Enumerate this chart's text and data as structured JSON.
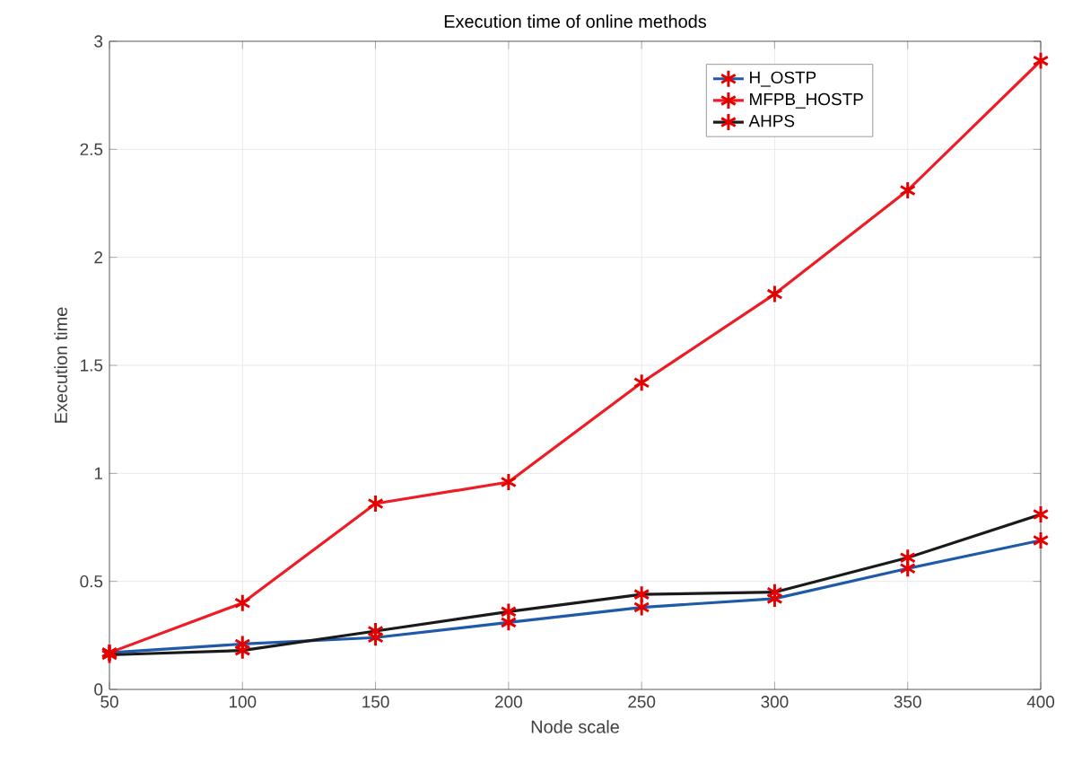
{
  "chart_data": {
    "type": "line",
    "title": "Execution time of online methods",
    "xlabel": "Node scale",
    "ylabel": "Execution time",
    "x": [
      50,
      100,
      150,
      200,
      250,
      300,
      350,
      400
    ],
    "series": [
      {
        "name": "H_OSTP",
        "color": "#1f5aa8",
        "values": [
          0.17,
          0.21,
          0.24,
          0.31,
          0.38,
          0.42,
          0.56,
          0.69
        ]
      },
      {
        "name": "MFPB_HOSTP",
        "color": "#ee1c25",
        "values": [
          0.17,
          0.4,
          0.86,
          0.96,
          1.42,
          1.83,
          2.31,
          2.91
        ]
      },
      {
        "name": "AHPS",
        "color": "#1a1a1a",
        "values": [
          0.16,
          0.18,
          0.27,
          0.36,
          0.44,
          0.45,
          0.61,
          0.81
        ]
      }
    ],
    "xlim": [
      50,
      400
    ],
    "xticks": [
      50,
      100,
      150,
      200,
      250,
      300,
      350,
      400
    ],
    "ylim": [
      0,
      3
    ],
    "yticks": [
      0,
      0.5,
      1,
      1.5,
      2,
      2.5,
      3
    ],
    "grid": true,
    "legend": "top right",
    "marker": "cross",
    "line_style": "solid"
  }
}
